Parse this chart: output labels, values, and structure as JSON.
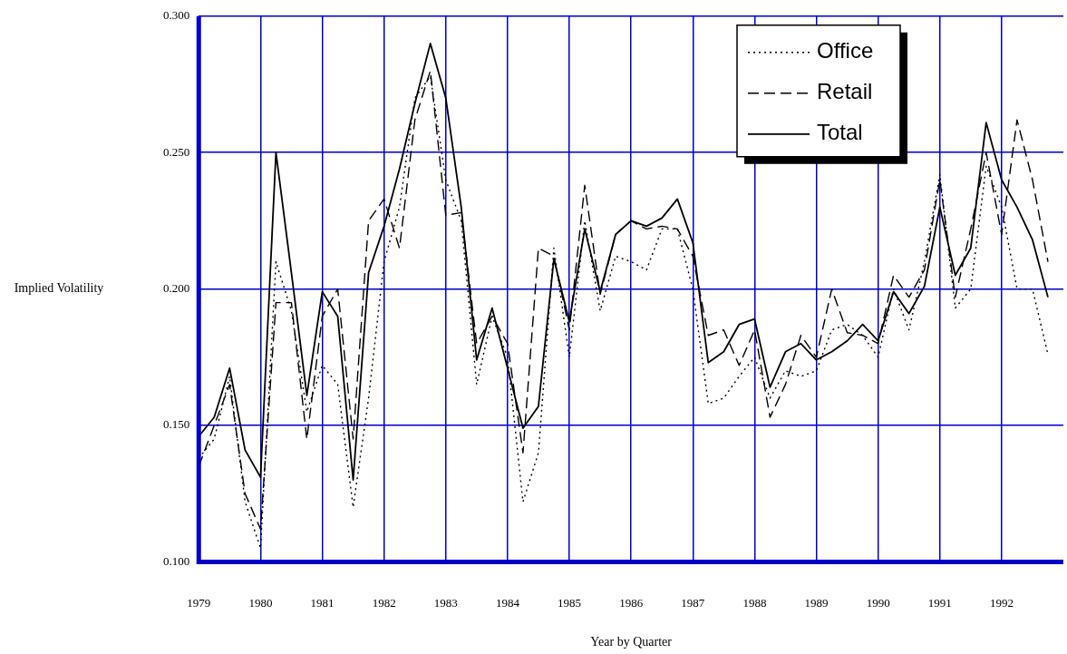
{
  "chart_data": {
    "type": "line",
    "xlabel": "Year by Quarter",
    "ylabel": "Implied Volatility",
    "x": [
      1979,
      1979.25,
      1979.5,
      1979.75,
      1980,
      1980.25,
      1980.5,
      1980.75,
      1981,
      1981.25,
      1981.5,
      1981.75,
      1982,
      1982.25,
      1982.5,
      1982.75,
      1983,
      1983.25,
      1983.5,
      1983.75,
      1984,
      1984.25,
      1984.5,
      1984.75,
      1985,
      1985.25,
      1985.5,
      1985.75,
      1986,
      1986.25,
      1986.5,
      1986.75,
      1987,
      1987.25,
      1987.5,
      1987.75,
      1988,
      1988.25,
      1988.5,
      1988.75,
      1989,
      1989.25,
      1989.5,
      1989.75,
      1990,
      1990.25,
      1990.5,
      1990.75,
      1991,
      1991.25,
      1991.5,
      1991.75,
      1992,
      1992.25,
      1992.5,
      1992.75
    ],
    "series": [
      {
        "name": "Office",
        "color": "#000000",
        "line_style": "dotted",
        "values": [
          0.138,
          0.145,
          0.168,
          0.122,
          0.105,
          0.21,
          0.192,
          0.155,
          0.172,
          0.165,
          0.12,
          0.16,
          0.21,
          0.23,
          0.27,
          0.278,
          0.24,
          0.225,
          0.165,
          0.19,
          0.175,
          0.122,
          0.14,
          0.215,
          0.175,
          0.225,
          0.192,
          0.212,
          0.21,
          0.207,
          0.222,
          0.222,
          0.2,
          0.158,
          0.16,
          0.168,
          0.175,
          0.16,
          0.17,
          0.168,
          0.17,
          0.185,
          0.187,
          0.183,
          0.175,
          0.2,
          0.185,
          0.21,
          0.242,
          0.193,
          0.2,
          0.245,
          0.23,
          0.2,
          0.2,
          0.176
        ]
      },
      {
        "name": "Retail",
        "color": "#000000",
        "line_style": "dashed",
        "values": [
          0.135,
          0.15,
          0.165,
          0.125,
          0.112,
          0.195,
          0.195,
          0.145,
          0.19,
          0.2,
          0.145,
          0.225,
          0.233,
          0.215,
          0.262,
          0.28,
          0.227,
          0.228,
          0.18,
          0.19,
          0.18,
          0.14,
          0.215,
          0.212,
          0.185,
          0.238,
          0.198,
          0.22,
          0.225,
          0.222,
          0.223,
          0.222,
          0.212,
          0.183,
          0.185,
          0.172,
          0.185,
          0.153,
          0.165,
          0.183,
          0.175,
          0.2,
          0.184,
          0.183,
          0.18,
          0.205,
          0.197,
          0.207,
          0.24,
          0.197,
          0.222,
          0.25,
          0.22,
          0.262,
          0.24,
          0.21
        ]
      },
      {
        "name": "Total",
        "color": "#000000",
        "line_style": "solid",
        "values": [
          0.146,
          0.153,
          0.171,
          0.141,
          0.131,
          0.25,
          0.206,
          0.161,
          0.199,
          0.19,
          0.13,
          0.206,
          0.223,
          0.244,
          0.268,
          0.29,
          0.27,
          0.23,
          0.174,
          0.193,
          0.171,
          0.149,
          0.157,
          0.211,
          0.188,
          0.222,
          0.199,
          0.22,
          0.225,
          0.223,
          0.226,
          0.233,
          0.217,
          0.173,
          0.177,
          0.187,
          0.189,
          0.164,
          0.177,
          0.18,
          0.174,
          0.177,
          0.181,
          0.187,
          0.181,
          0.199,
          0.191,
          0.201,
          0.23,
          0.205,
          0.215,
          0.261,
          0.24,
          0.23,
          0.218,
          0.197
        ]
      }
    ],
    "xlim": [
      1979,
      1993
    ],
    "xticks": [
      1979,
      1980,
      1981,
      1982,
      1983,
      1984,
      1985,
      1986,
      1987,
      1988,
      1989,
      1990,
      1991,
      1992
    ],
    "ylim": [
      0.1,
      0.3
    ],
    "yticks": [
      {
        "value": 0.1,
        "label": "0.100"
      },
      {
        "value": 0.15,
        "label": "0.150"
      },
      {
        "value": 0.2,
        "label": "0.200"
      },
      {
        "value": 0.25,
        "label": "0.250"
      },
      {
        "value": 0.3,
        "label": "0.300"
      }
    ],
    "grid": true,
    "legend": "top right"
  }
}
